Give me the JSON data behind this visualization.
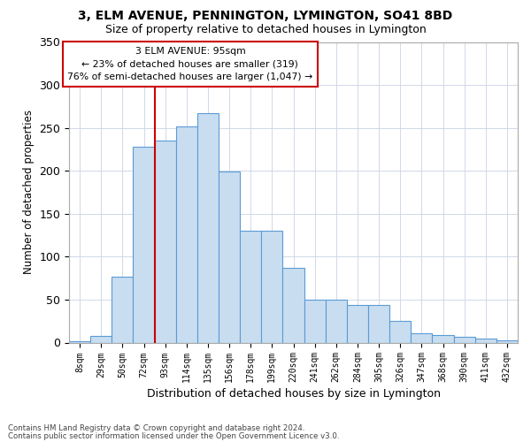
{
  "title1": "3, ELM AVENUE, PENNINGTON, LYMINGTON, SO41 8BD",
  "title2": "Size of property relative to detached houses in Lymington",
  "xlabel": "Distribution of detached houses by size in Lymington",
  "ylabel": "Number of detached properties",
  "categories": [
    "8sqm",
    "29sqm",
    "50sqm",
    "72sqm",
    "93sqm",
    "114sqm",
    "135sqm",
    "156sqm",
    "178sqm",
    "199sqm",
    "220sqm",
    "241sqm",
    "262sqm",
    "284sqm",
    "305sqm",
    "326sqm",
    "347sqm",
    "368sqm",
    "390sqm",
    "411sqm",
    "432sqm"
  ],
  "values": [
    2,
    8,
    77,
    228,
    235,
    252,
    267,
    199,
    130,
    130,
    87,
    50,
    50,
    44,
    44,
    25,
    11,
    9,
    7,
    5,
    3
  ],
  "bar_color": "#c9ddf0",
  "bar_edge_color": "#5b9bd5",
  "vline_color": "#cc0000",
  "vline_index": 4,
  "grid_color": "#d0d8e8",
  "marker_label": "3 ELM AVENUE: 95sqm",
  "pct_smaller": "23% of detached houses are smaller (319)",
  "pct_larger": "76% of semi-detached houses are larger (1,047)",
  "footnote1": "Contains HM Land Registry data © Crown copyright and database right 2024.",
  "footnote2": "Contains public sector information licensed under the Open Government Licence v3.0.",
  "ylim": [
    0,
    350
  ],
  "yticks": [
    0,
    50,
    100,
    150,
    200,
    250,
    300,
    350
  ]
}
